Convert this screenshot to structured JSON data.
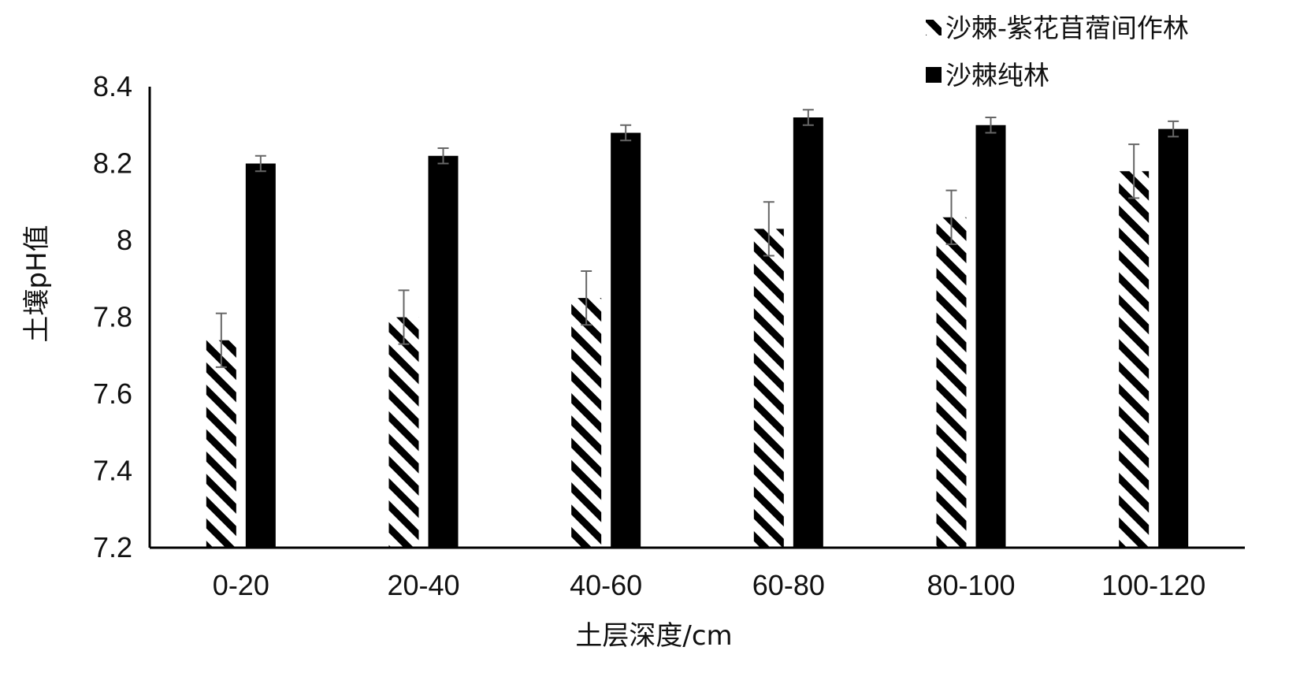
{
  "chart_data": {
    "type": "bar",
    "title": "",
    "xlabel": "土层深度/cm",
    "ylabel": "土壤pH值",
    "categories": [
      "0-20",
      "20-40",
      "40-60",
      "60-80",
      "80-100",
      "100-120"
    ],
    "ylim": [
      7.2,
      8.4
    ],
    "yticks": [
      "7.2",
      "7.4",
      "7.6",
      "7.8",
      "8",
      "8.2",
      "8.4"
    ],
    "grid": false,
    "legend_position": "top-right",
    "series": [
      {
        "name": "沙棘-紫花苜蓿间作林",
        "fill": "hatched",
        "color": "#000000",
        "values": [
          7.74,
          7.8,
          7.85,
          8.03,
          8.06,
          8.18
        ],
        "errors": [
          0.07,
          0.07,
          0.07,
          0.07,
          0.07,
          0.07
        ]
      },
      {
        "name": "沙棘纯林",
        "fill": "solid",
        "color": "#000000",
        "values": [
          8.2,
          8.22,
          8.28,
          8.32,
          8.3,
          8.29
        ],
        "errors": [
          0.02,
          0.02,
          0.02,
          0.02,
          0.02,
          0.02
        ]
      }
    ]
  }
}
